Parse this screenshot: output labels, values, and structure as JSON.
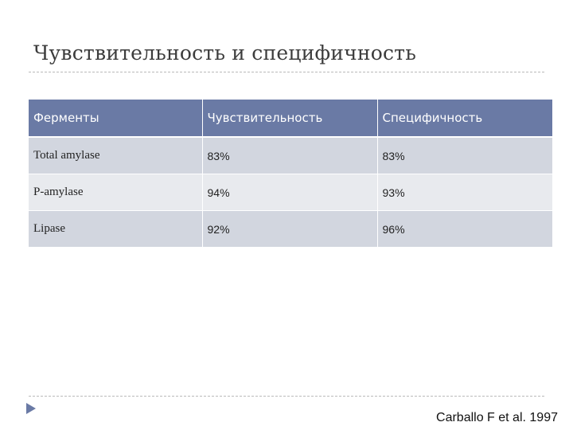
{
  "slide": {
    "title": "Чувствительность и специфичность",
    "citation": "Carballo F et al. 1997"
  },
  "table": {
    "headers": [
      "Ферменты",
      "Чувствительность",
      "Специфичность"
    ],
    "rows": [
      [
        "Total amylase",
        "83%",
        "83%"
      ],
      [
        "P-amylase",
        "94%",
        "93%"
      ],
      [
        "Lipase",
        "92%",
        "96%"
      ]
    ]
  },
  "colors": {
    "header_bg": "#6a7aa5",
    "row_odd_bg": "#d2d6df",
    "row_even_bg": "#e8eaee",
    "accent_arrow": "#6a7aa5"
  },
  "icons": {
    "nav": "triangle-right-icon"
  }
}
